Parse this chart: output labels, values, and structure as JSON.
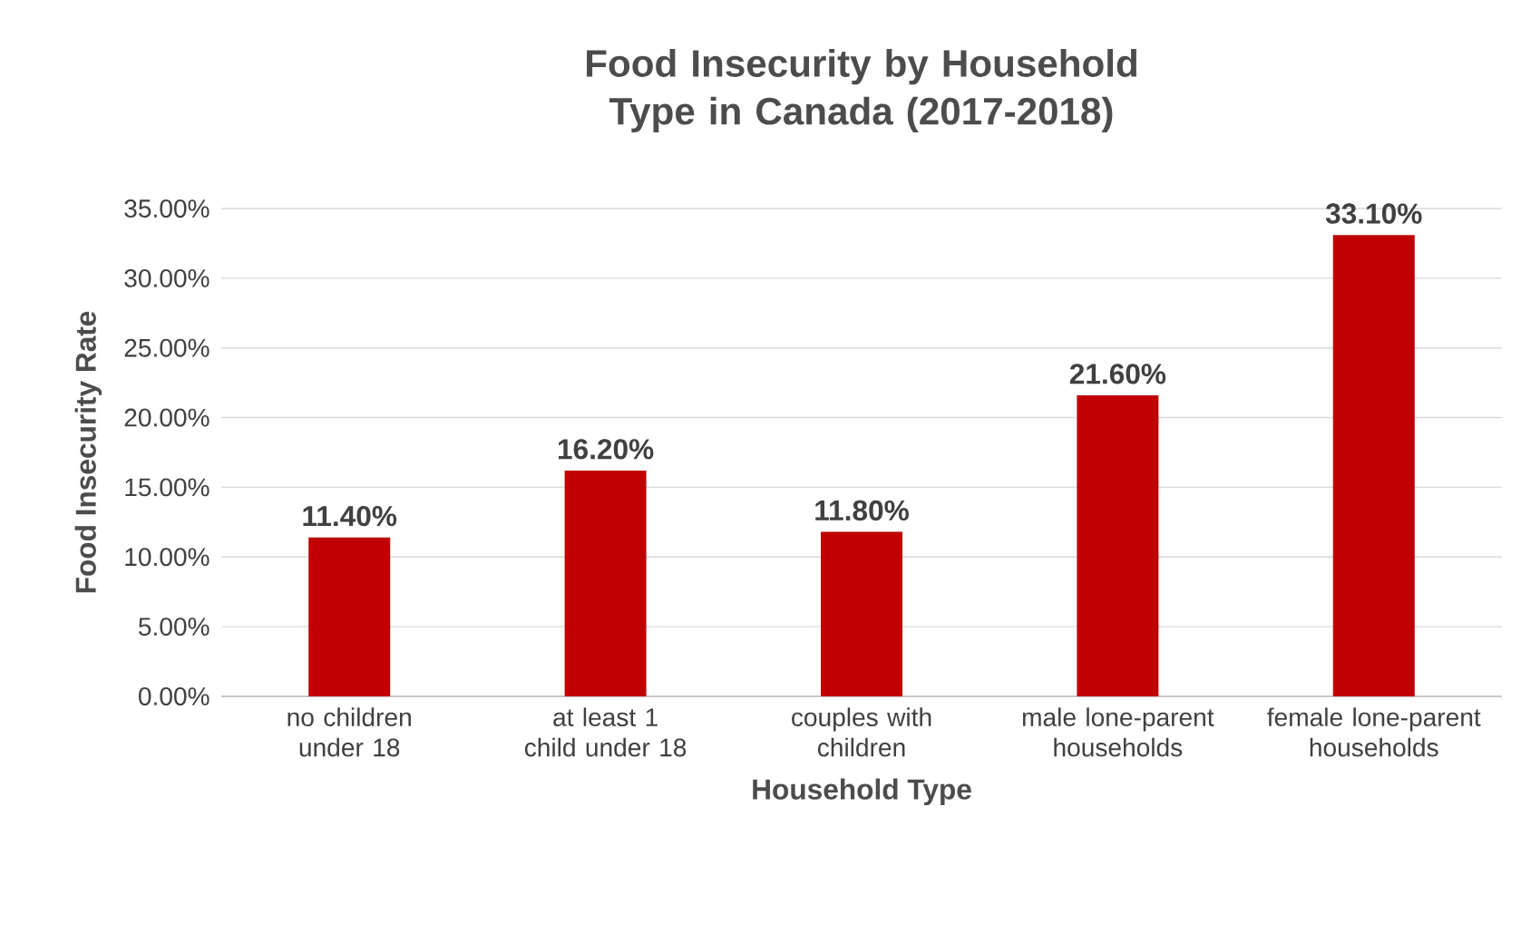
{
  "chart_data": {
    "type": "bar",
    "title": "Food Insecurity by Household Type in Canada (2017-2018)",
    "xlabel": "Household Type",
    "ylabel": "Food Insecurity Rate",
    "categories": [
      "no children under 18",
      "at least 1 child under 18",
      "couples with children",
      "male lone-parent households",
      "female lone-parent households"
    ],
    "values": [
      11.4,
      16.2,
      11.8,
      21.6,
      33.1
    ],
    "value_labels": [
      "11.40%",
      "16.20%",
      "11.80%",
      "21.60%",
      "33.10%"
    ],
    "color": "#c00000",
    "ylim": [
      0,
      35
    ],
    "yticks": [
      {
        "value": 0,
        "label": "0.00%"
      },
      {
        "value": 5,
        "label": "5.00%"
      },
      {
        "value": 10,
        "label": "10.00%"
      },
      {
        "value": 15,
        "label": "15.00%"
      },
      {
        "value": 20,
        "label": "20.00%"
      },
      {
        "value": 25,
        "label": "25.00%"
      },
      {
        "value": 30,
        "label": "30.00%"
      },
      {
        "value": 35,
        "label": "35.00%"
      }
    ],
    "grid": "y"
  }
}
